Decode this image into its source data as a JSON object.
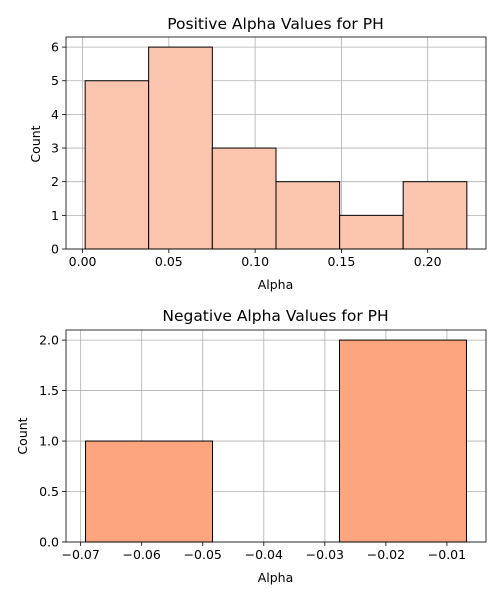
{
  "chart_data": [
    {
      "type": "bar",
      "title": "Positive Alpha Values for PH",
      "xlabel": "Alpha",
      "ylabel": "Count",
      "bins": [
        {
          "x0": 0.0015,
          "x1": 0.0383,
          "value": 5
        },
        {
          "x0": 0.0383,
          "x1": 0.0752,
          "value": 6
        },
        {
          "x0": 0.0752,
          "x1": 0.1121,
          "value": 3
        },
        {
          "x0": 0.1121,
          "x1": 0.149,
          "value": 2
        },
        {
          "x0": 0.149,
          "x1": 0.1858,
          "value": 1
        },
        {
          "x0": 0.1858,
          "x1": 0.2227,
          "value": 2
        }
      ],
      "xlim": [
        -0.0096,
        0.2338
      ],
      "ylim": [
        0,
        6.3
      ],
      "xticks": [
        0.0,
        0.05,
        0.1,
        0.15,
        0.2
      ],
      "xtick_labels": [
        "0.00",
        "0.05",
        "0.10",
        "0.15",
        "0.20"
      ],
      "yticks": [
        0,
        1,
        2,
        3,
        4,
        5,
        6
      ],
      "ytick_labels": [
        "0",
        "1",
        "2",
        "3",
        "4",
        "5",
        "6"
      ],
      "grid": true,
      "colors": {
        "bar": "#fcc5b0",
        "edge": "#000000"
      }
    },
    {
      "type": "bar",
      "title": "Negative Alpha Values for PH",
      "xlabel": "Alpha",
      "ylabel": "Count",
      "bins": [
        {
          "x0": -0.0692,
          "x1": -0.0484,
          "value": 1
        },
        {
          "x0": -0.0484,
          "x1": -0.0276,
          "value": 0
        },
        {
          "x0": -0.0276,
          "x1": -0.0068,
          "value": 2
        }
      ],
      "xlim": [
        -0.0724,
        -0.0036
      ],
      "ylim": [
        0,
        2.1
      ],
      "xticks": [
        -0.07,
        -0.06,
        -0.05,
        -0.04,
        -0.03,
        -0.02,
        -0.01
      ],
      "xtick_labels": [
        "−0.07",
        "−0.06",
        "−0.05",
        "−0.04",
        "−0.03",
        "−0.02",
        "−0.01"
      ],
      "yticks": [
        0.0,
        0.5,
        1.0,
        1.5,
        2.0
      ],
      "ytick_labels": [
        "0.0",
        "0.5",
        "1.0",
        "1.5",
        "2.0"
      ],
      "grid": true,
      "colors": {
        "bar": "#fca57e",
        "edge": "#000000"
      }
    }
  ]
}
